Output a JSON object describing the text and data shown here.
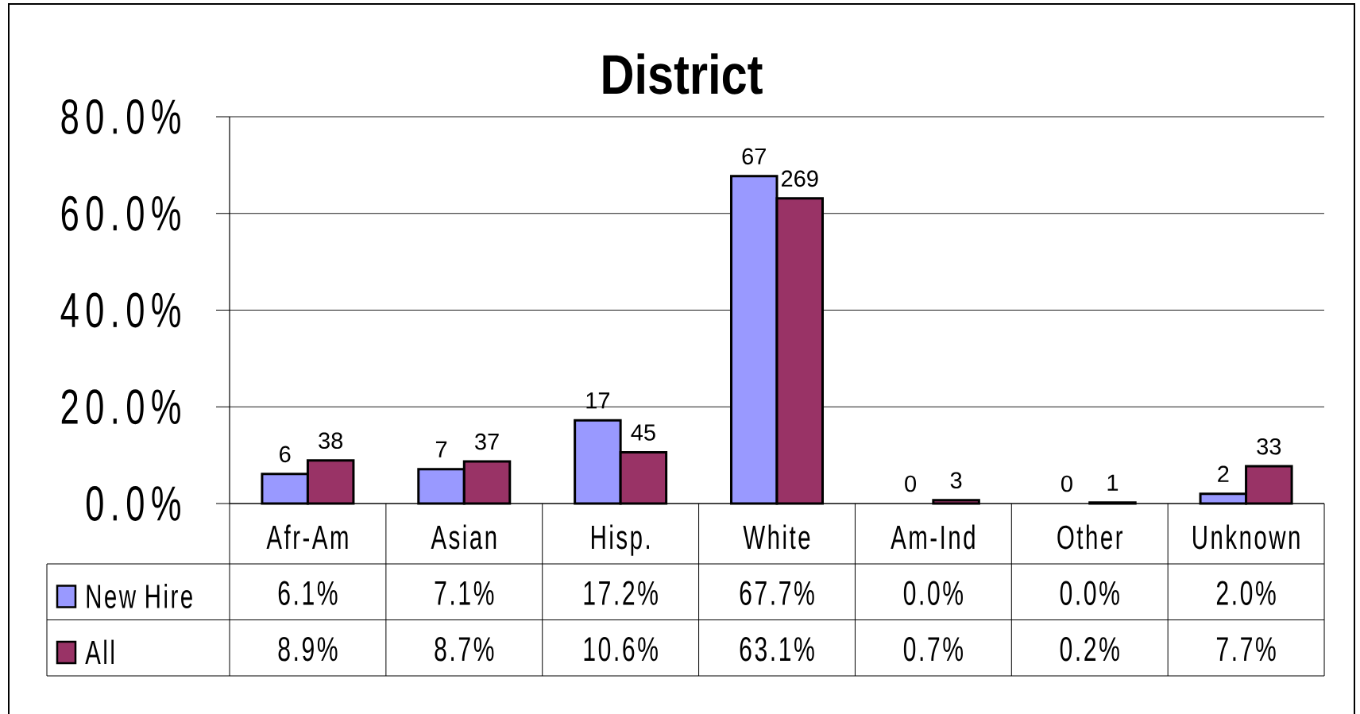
{
  "chart_data": {
    "type": "bar",
    "title": "District",
    "categories": [
      "Afr-Am",
      "Asian",
      "Hisp.",
      "White",
      "Am-Ind",
      "Other",
      "Unknown"
    ],
    "series": [
      {
        "name": "New Hire",
        "color": "#9999ff",
        "values": [
          6.1,
          7.1,
          17.2,
          67.7,
          0.0,
          0.0,
          2.0
        ],
        "value_labels": [
          "6.1%",
          "7.1%",
          "17.2%",
          "67.7%",
          "0.0%",
          "0.0%",
          "2.0%"
        ]
      },
      {
        "name": "All",
        "color": "#993366",
        "values": [
          8.9,
          8.7,
          10.6,
          63.1,
          0.7,
          0.2,
          7.7
        ],
        "value_labels": [
          "8.9%",
          "8.7%",
          "10.6%",
          "63.1%",
          "0.7%",
          "0.2%",
          "7.7%"
        ]
      }
    ],
    "ylim": [
      0,
      80
    ],
    "yticks": [
      {
        "value": 0,
        "label": "0.0%"
      },
      {
        "value": 20,
        "label": "20.0%"
      },
      {
        "value": 40,
        "label": "40.0%"
      },
      {
        "value": 60,
        "label": "60.0%"
      },
      {
        "value": 80,
        "label": "80.0%"
      }
    ],
    "grid": "y",
    "legend": "bottom left",
    "annotations": [
      {
        "text": "6",
        "x": "Afr-Am",
        "y": 6.1
      },
      {
        "text": "38",
        "x": "Afr-Am",
        "y": 8.9
      },
      {
        "text": "7",
        "x": "Asian",
        "y": 7.1
      },
      {
        "text": "37",
        "x": "Asian",
        "y": 8.7
      },
      {
        "text": "17",
        "x": "Hisp.",
        "y": 17.2
      },
      {
        "text": "45",
        "x": "Hisp.",
        "y": 10.6
      },
      {
        "text": "67",
        "x": "White",
        "y": 67.7
      },
      {
        "text": "269",
        "x": "White",
        "y": 63.1
      },
      {
        "text": "0",
        "x": "Am-Ind",
        "y": 0.0
      },
      {
        "text": "3",
        "x": "Am-Ind",
        "y": 0.7
      },
      {
        "text": "0",
        "x": "Other",
        "y": 0.0
      },
      {
        "text": "1",
        "x": "Other",
        "y": 0.2
      },
      {
        "text": "2",
        "x": "Unknown",
        "y": 2.0
      },
      {
        "text": "33",
        "x": "Unknown",
        "y": 7.7
      }
    ]
  }
}
